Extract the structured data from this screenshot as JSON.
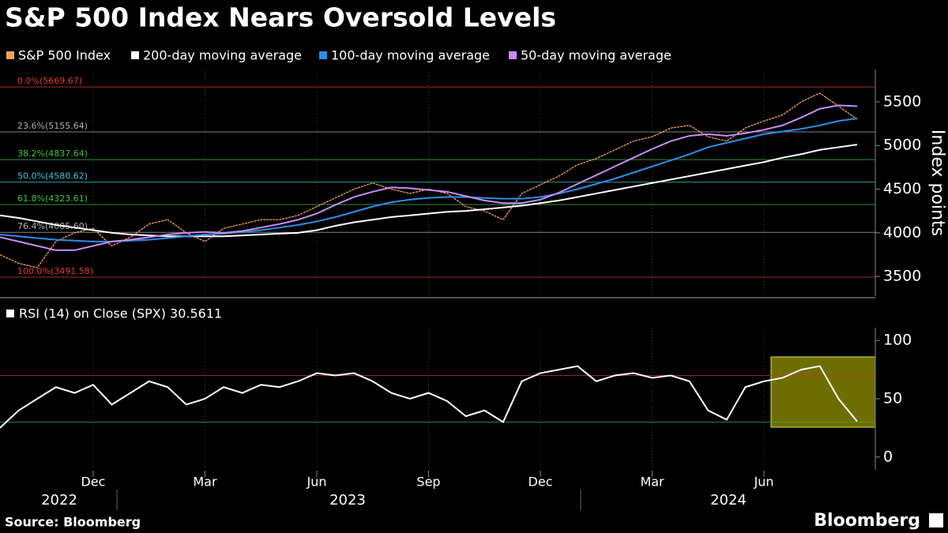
{
  "title": "S&P 500 Index Nears Oversold Levels",
  "source": "Source: Bloomberg",
  "brand": "Bloomberg",
  "years": [
    "2022",
    "2023",
    "2024"
  ],
  "chart_data": [
    {
      "type": "line",
      "y_label": "Index points",
      "ylim": [
        3275,
        5870
      ],
      "yticks": [
        3500,
        4000,
        4500,
        5000,
        5500
      ],
      "levels": [
        {
          "label": "0.0%(5669.67)",
          "value": 5669.67,
          "color": "#e03a3a"
        },
        {
          "label": "23.6%(5155.64)",
          "value": 5155.64,
          "color": "#b0b0b0"
        },
        {
          "label": "38.2%(4837.64)",
          "value": 4837.64,
          "color": "#3cc24a"
        },
        {
          "label": "50.0%(4580.62)",
          "value": 4580.62,
          "color": "#3ec8d8"
        },
        {
          "label": "61.8%(4323.61)",
          "value": 4323.61,
          "color": "#3cc24a"
        },
        {
          "label": "76.4%(4005.60)",
          "value": 4005.6,
          "color": "#b0b0b0"
        },
        {
          "label": "100.0%(3491.58)",
          "value": 3491.58,
          "color": "#e03a3a"
        }
      ],
      "series": [
        {
          "name": "S&P 500 Index",
          "color": "#f5a35c",
          "values": [
            3750,
            3650,
            3600,
            3900,
            4000,
            4050,
            3850,
            3950,
            4100,
            4150,
            4000,
            3900,
            4050,
            4100,
            4150,
            4150,
            4200,
            4300,
            4400,
            4500,
            4570,
            4500,
            4450,
            4500,
            4450,
            4300,
            4250,
            4150,
            4450,
            4550,
            4650,
            4780,
            4850,
            4950,
            5050,
            5100,
            5200,
            5230,
            5100,
            5050,
            5200,
            5280,
            5350,
            5500,
            5600,
            5450,
            5300
          ]
        },
        {
          "name": "200-day moving average",
          "color": "#ffffff",
          "values": [
            4200,
            4170,
            4130,
            4090,
            4060,
            4030,
            4000,
            3980,
            3970,
            3960,
            3960,
            3960,
            3960,
            3970,
            3980,
            3990,
            4000,
            4030,
            4080,
            4120,
            4150,
            4180,
            4200,
            4220,
            4240,
            4250,
            4270,
            4290,
            4310,
            4340,
            4370,
            4410,
            4450,
            4490,
            4530,
            4570,
            4610,
            4650,
            4690,
            4730,
            4770,
            4810,
            4860,
            4900,
            4950,
            4980,
            5010
          ]
        },
        {
          "name": "100-day moving average",
          "color": "#2b8fe8",
          "values": [
            3980,
            3960,
            3940,
            3920,
            3910,
            3900,
            3900,
            3910,
            3920,
            3940,
            3960,
            3980,
            3990,
            4010,
            4030,
            4060,
            4090,
            4130,
            4180,
            4240,
            4300,
            4350,
            4380,
            4400,
            4410,
            4410,
            4400,
            4390,
            4390,
            4410,
            4450,
            4500,
            4560,
            4620,
            4690,
            4760,
            4830,
            4900,
            4980,
            5030,
            5080,
            5130,
            5160,
            5190,
            5230,
            5280,
            5310
          ]
        },
        {
          "name": "50-day moving average",
          "color": "#c98cf5",
          "values": [
            3950,
            3900,
            3850,
            3800,
            3800,
            3850,
            3900,
            3920,
            3950,
            3980,
            4000,
            4010,
            4000,
            4020,
            4060,
            4100,
            4150,
            4220,
            4320,
            4410,
            4470,
            4520,
            4510,
            4490,
            4470,
            4420,
            4370,
            4340,
            4340,
            4380,
            4460,
            4560,
            4660,
            4760,
            4860,
            4960,
            5050,
            5110,
            5130,
            5110,
            5140,
            5180,
            5230,
            5320,
            5420,
            5460,
            5450
          ]
        }
      ]
    },
    {
      "type": "line",
      "title": "RSI (14)  on Close (SPX) 30.5611",
      "ylim": [
        -11,
        111
      ],
      "yticks": [
        0,
        50,
        100
      ],
      "levels": [
        {
          "value": 70,
          "color": "#d03030"
        },
        {
          "value": 30,
          "color": "#3aa84a"
        }
      ],
      "categories": [
        null,
        null,
        null,
        null,
        null,
        "Dec",
        null,
        null,
        null,
        null,
        null,
        "Mar",
        null,
        null,
        null,
        null,
        null,
        "Jun",
        null,
        null,
        null,
        null,
        null,
        "Sep",
        null,
        null,
        null,
        null,
        null,
        "Dec",
        null,
        null,
        null,
        null,
        null,
        "Mar",
        null,
        null,
        null,
        null,
        null,
        "Jun",
        null,
        null,
        null,
        null,
        null
      ],
      "series": [
        {
          "name": "RSI (14)",
          "color": "#ffffff",
          "values": [
            25,
            40,
            50,
            60,
            55,
            62,
            45,
            55,
            65,
            60,
            45,
            50,
            60,
            55,
            62,
            60,
            65,
            72,
            70,
            72,
            65,
            55,
            50,
            55,
            48,
            35,
            40,
            30,
            65,
            72,
            75,
            78,
            65,
            70,
            72,
            68,
            70,
            65,
            40,
            32,
            60,
            65,
            68,
            75,
            78,
            50,
            30.5611
          ]
        }
      ]
    }
  ]
}
